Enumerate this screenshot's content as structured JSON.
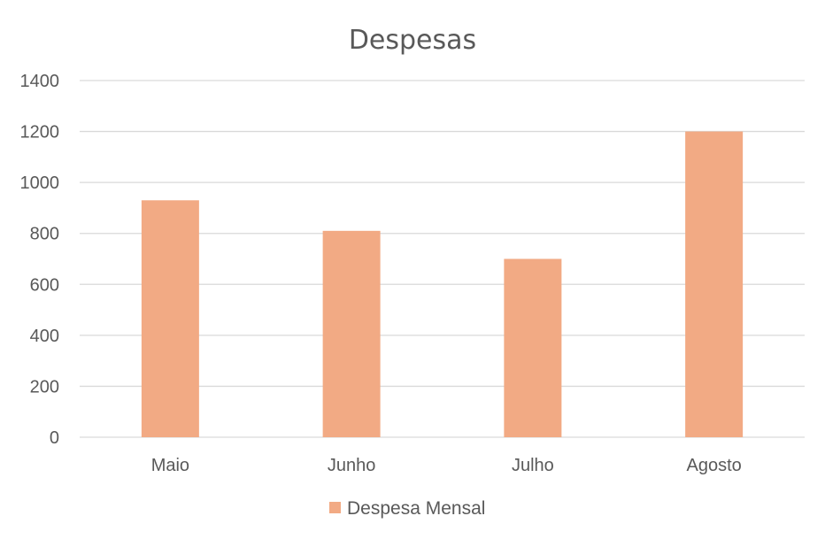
{
  "chart_data": {
    "type": "bar",
    "title": "Despesas",
    "xlabel": "",
    "ylabel": "",
    "categories": [
      "Maio",
      "Junho",
      "Julho",
      "Agosto"
    ],
    "series": [
      {
        "name": "Despesa Mensal",
        "values": [
          930,
          810,
          700,
          1200
        ],
        "color": "#F2AA84"
      }
    ],
    "ylim": [
      0,
      1400
    ],
    "yticks": [
      0,
      200,
      400,
      600,
      800,
      1000,
      1200,
      1400
    ],
    "grid": true,
    "grid_color": "#D9D9D9",
    "text_color": "#595959",
    "legend_position": "bottom"
  }
}
